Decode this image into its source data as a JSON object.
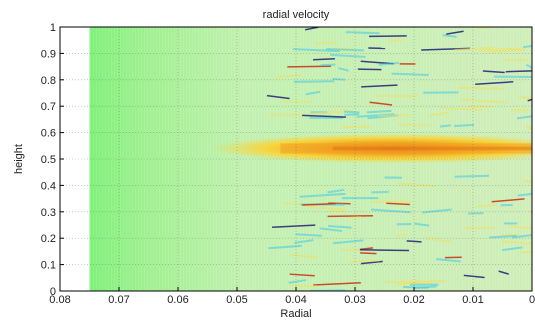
{
  "chart_data": {
    "type": "heatmap",
    "title": "radial velocity",
    "xlabel": "Radial",
    "ylabel": "height",
    "xlim": [
      0.08,
      0
    ],
    "ylim": [
      0,
      1
    ],
    "x_direction": "reversed",
    "x_ticks": [
      "0.08",
      "0.07",
      "0.06",
      "0.05",
      "0.04",
      "0.03",
      "0.02",
      "0.01",
      "0"
    ],
    "y_ticks": [
      "0",
      "0.1",
      "0.2",
      "0.3",
      "0.4",
      "0.5",
      "0.6",
      "0.7",
      "0.8",
      "0.9",
      "1"
    ],
    "data_x_range": [
      0.075,
      0
    ],
    "grid": "dotted",
    "colormap": "jet",
    "colors": {
      "background_field": "#7ff07a",
      "mid_field": "#c4f0b0",
      "hot_band": "#f0a020",
      "peak": "#e06a10",
      "cool_streak": "#3fc8e8",
      "dark_streak": "#2a2a7a",
      "red_streak": "#c83a1a"
    },
    "features": [
      {
        "name": "hot band",
        "radial_from": 0.052,
        "radial_to": 0.0,
        "height": 0.54,
        "half_height": 0.035
      },
      {
        "name": "lower disturbances",
        "radial_from": 0.045,
        "radial_to": 0.0,
        "height_from": 0.0,
        "height_to": 0.45
      },
      {
        "name": "upper disturbances",
        "radial_from": 0.045,
        "radial_to": 0.0,
        "height_from": 0.62,
        "height_to": 1.0
      }
    ]
  }
}
